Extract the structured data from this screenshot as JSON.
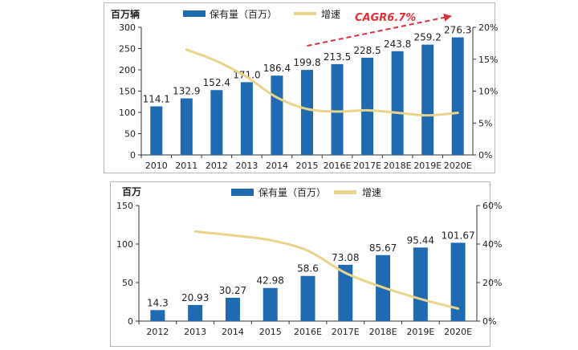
{
  "colors": {
    "bar": "#1f6ab0",
    "line": "#ead38a",
    "axis": "#333333",
    "arrow": "#e0303a"
  },
  "chart_data": [
    {
      "type": "bar",
      "unit_label": "百万辆",
      "legend": {
        "bar": "保有量（百万）",
        "line": "增速"
      },
      "categories": [
        "2010",
        "2011",
        "2012",
        "2013",
        "2014",
        "2015",
        "2016E",
        "2017E",
        "2018E",
        "2019E",
        "2020E"
      ],
      "series": [
        {
          "name": "保有量（百万）",
          "type": "bar",
          "axis": "left",
          "values": [
            114.1,
            132.9,
            152.4,
            171.0,
            186.4,
            199.8,
            213.5,
            228.5,
            243.8,
            259.2,
            276.3
          ],
          "labels": [
            "114.1",
            "132.9",
            "152.4",
            "171.0",
            "186.4",
            "199.8",
            "213.5",
            "228.5",
            "243.8",
            "259.2",
            "276.3"
          ]
        },
        {
          "name": "增速",
          "type": "line",
          "axis": "right",
          "values": [
            null,
            16.5,
            14.7,
            12.2,
            9.0,
            7.2,
            6.8,
            7.0,
            6.6,
            6.2,
            6.6
          ]
        }
      ],
      "y_left": {
        "min": 0,
        "max": 300,
        "ticks": [
          "0",
          "50",
          "100",
          "150",
          "200",
          "250",
          "300"
        ]
      },
      "y_right": {
        "min": 0,
        "max": 20,
        "ticks": [
          "0%",
          "5%",
          "10%",
          "15%",
          "20%"
        ]
      },
      "annotation": {
        "text": "CAGR6.7%",
        "from_category": "2015",
        "to_category": "2020E"
      }
    },
    {
      "type": "bar",
      "unit_label": "百万",
      "legend": {
        "bar": "保有量（百万）",
        "line": "增速"
      },
      "categories": [
        "2012",
        "2013",
        "2014",
        "2015",
        "2016E",
        "2017E",
        "2018E",
        "2019E",
        "2020E"
      ],
      "series": [
        {
          "name": "保有量（百万）",
          "type": "bar",
          "axis": "left",
          "values": [
            14.3,
            20.93,
            30.27,
            42.98,
            58.6,
            73.08,
            85.67,
            95.44,
            101.67
          ],
          "labels": [
            "14.3",
            "20.93",
            "30.27",
            "42.98",
            "58.6",
            "73.08",
            "85.67",
            "95.44",
            "101.67"
          ]
        },
        {
          "name": "增速",
          "type": "line",
          "axis": "right",
          "values": [
            null,
            46.5,
            44.5,
            42.0,
            36.5,
            25.0,
            17.5,
            11.5,
            6.5
          ]
        }
      ],
      "y_left": {
        "min": 0,
        "max": 150,
        "ticks": [
          "0",
          "50",
          "100",
          "150"
        ]
      },
      "y_right": {
        "min": 0,
        "max": 60,
        "ticks": [
          "0%",
          "20%",
          "40%",
          "60%"
        ]
      }
    }
  ]
}
